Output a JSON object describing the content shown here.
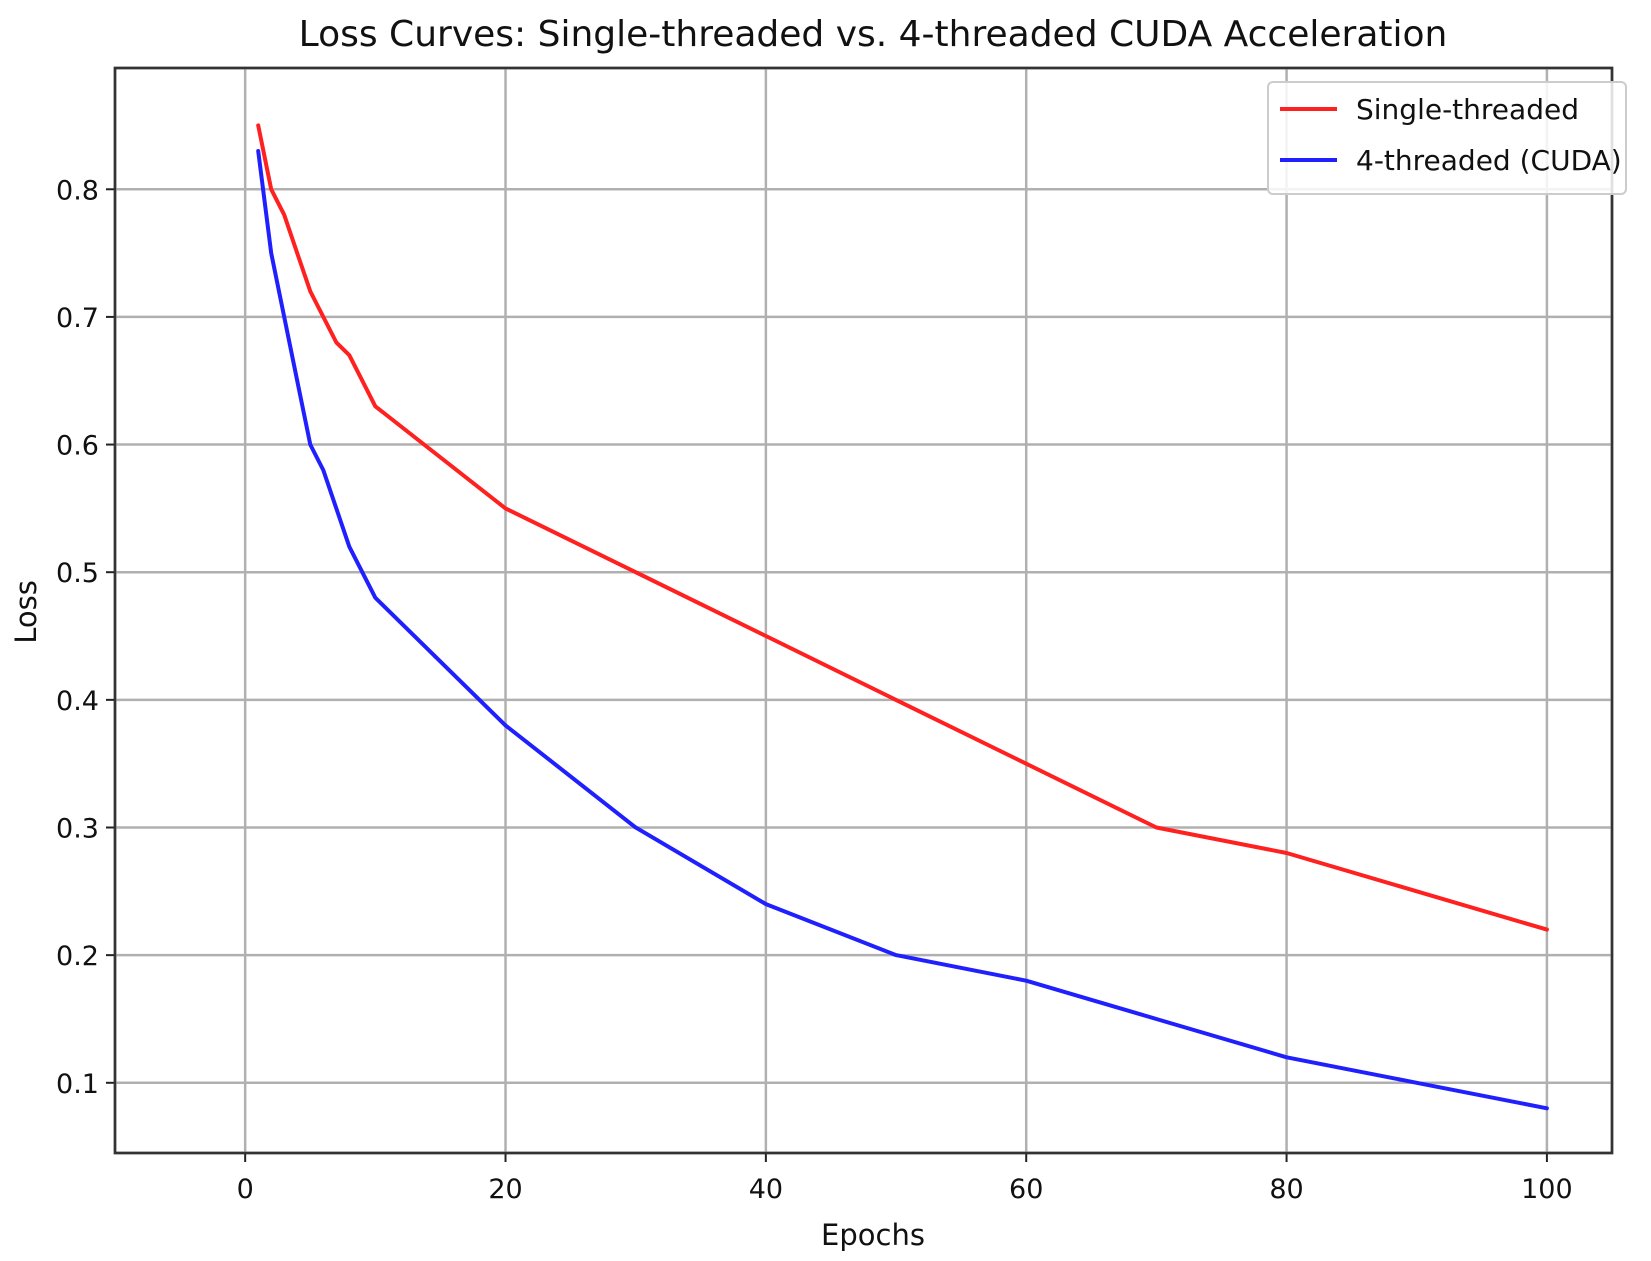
{
  "chart_data": {
    "type": "line",
    "title": "Loss Curves: Single-threaded vs. 4-threaded CUDA Acceleration",
    "xlabel": "Epochs",
    "ylabel": "Loss",
    "xlim": [
      -10,
      105
    ],
    "ylim": [
      0.045,
      0.895
    ],
    "xticks": [
      0,
      20,
      40,
      60,
      80,
      100
    ],
    "yticks": [
      0.1,
      0.2,
      0.3,
      0.4,
      0.5,
      0.6,
      0.7,
      0.8
    ],
    "grid": true,
    "legend_position": "top-right",
    "series": [
      {
        "name": "Single-threaded",
        "color": "#ff2020",
        "x": [
          1,
          2,
          3,
          4,
          5,
          6,
          7,
          8,
          9,
          10,
          20,
          30,
          40,
          50,
          60,
          70,
          80,
          90,
          100
        ],
        "y": [
          0.85,
          0.8,
          0.78,
          0.75,
          0.72,
          0.7,
          0.68,
          0.67,
          0.65,
          0.63,
          0.55,
          0.5,
          0.45,
          0.4,
          0.35,
          0.3,
          0.28,
          0.25,
          0.22
        ]
      },
      {
        "name": "4-threaded (CUDA)",
        "color": "#2020ff",
        "x": [
          1,
          2,
          3,
          4,
          5,
          6,
          7,
          8,
          9,
          10,
          20,
          30,
          40,
          50,
          60,
          70,
          80,
          90,
          100
        ],
        "y": [
          0.83,
          0.75,
          0.7,
          0.65,
          0.6,
          0.58,
          0.55,
          0.52,
          0.5,
          0.48,
          0.38,
          0.3,
          0.24,
          0.2,
          0.18,
          0.15,
          0.12,
          0.1,
          0.08
        ]
      }
    ]
  }
}
